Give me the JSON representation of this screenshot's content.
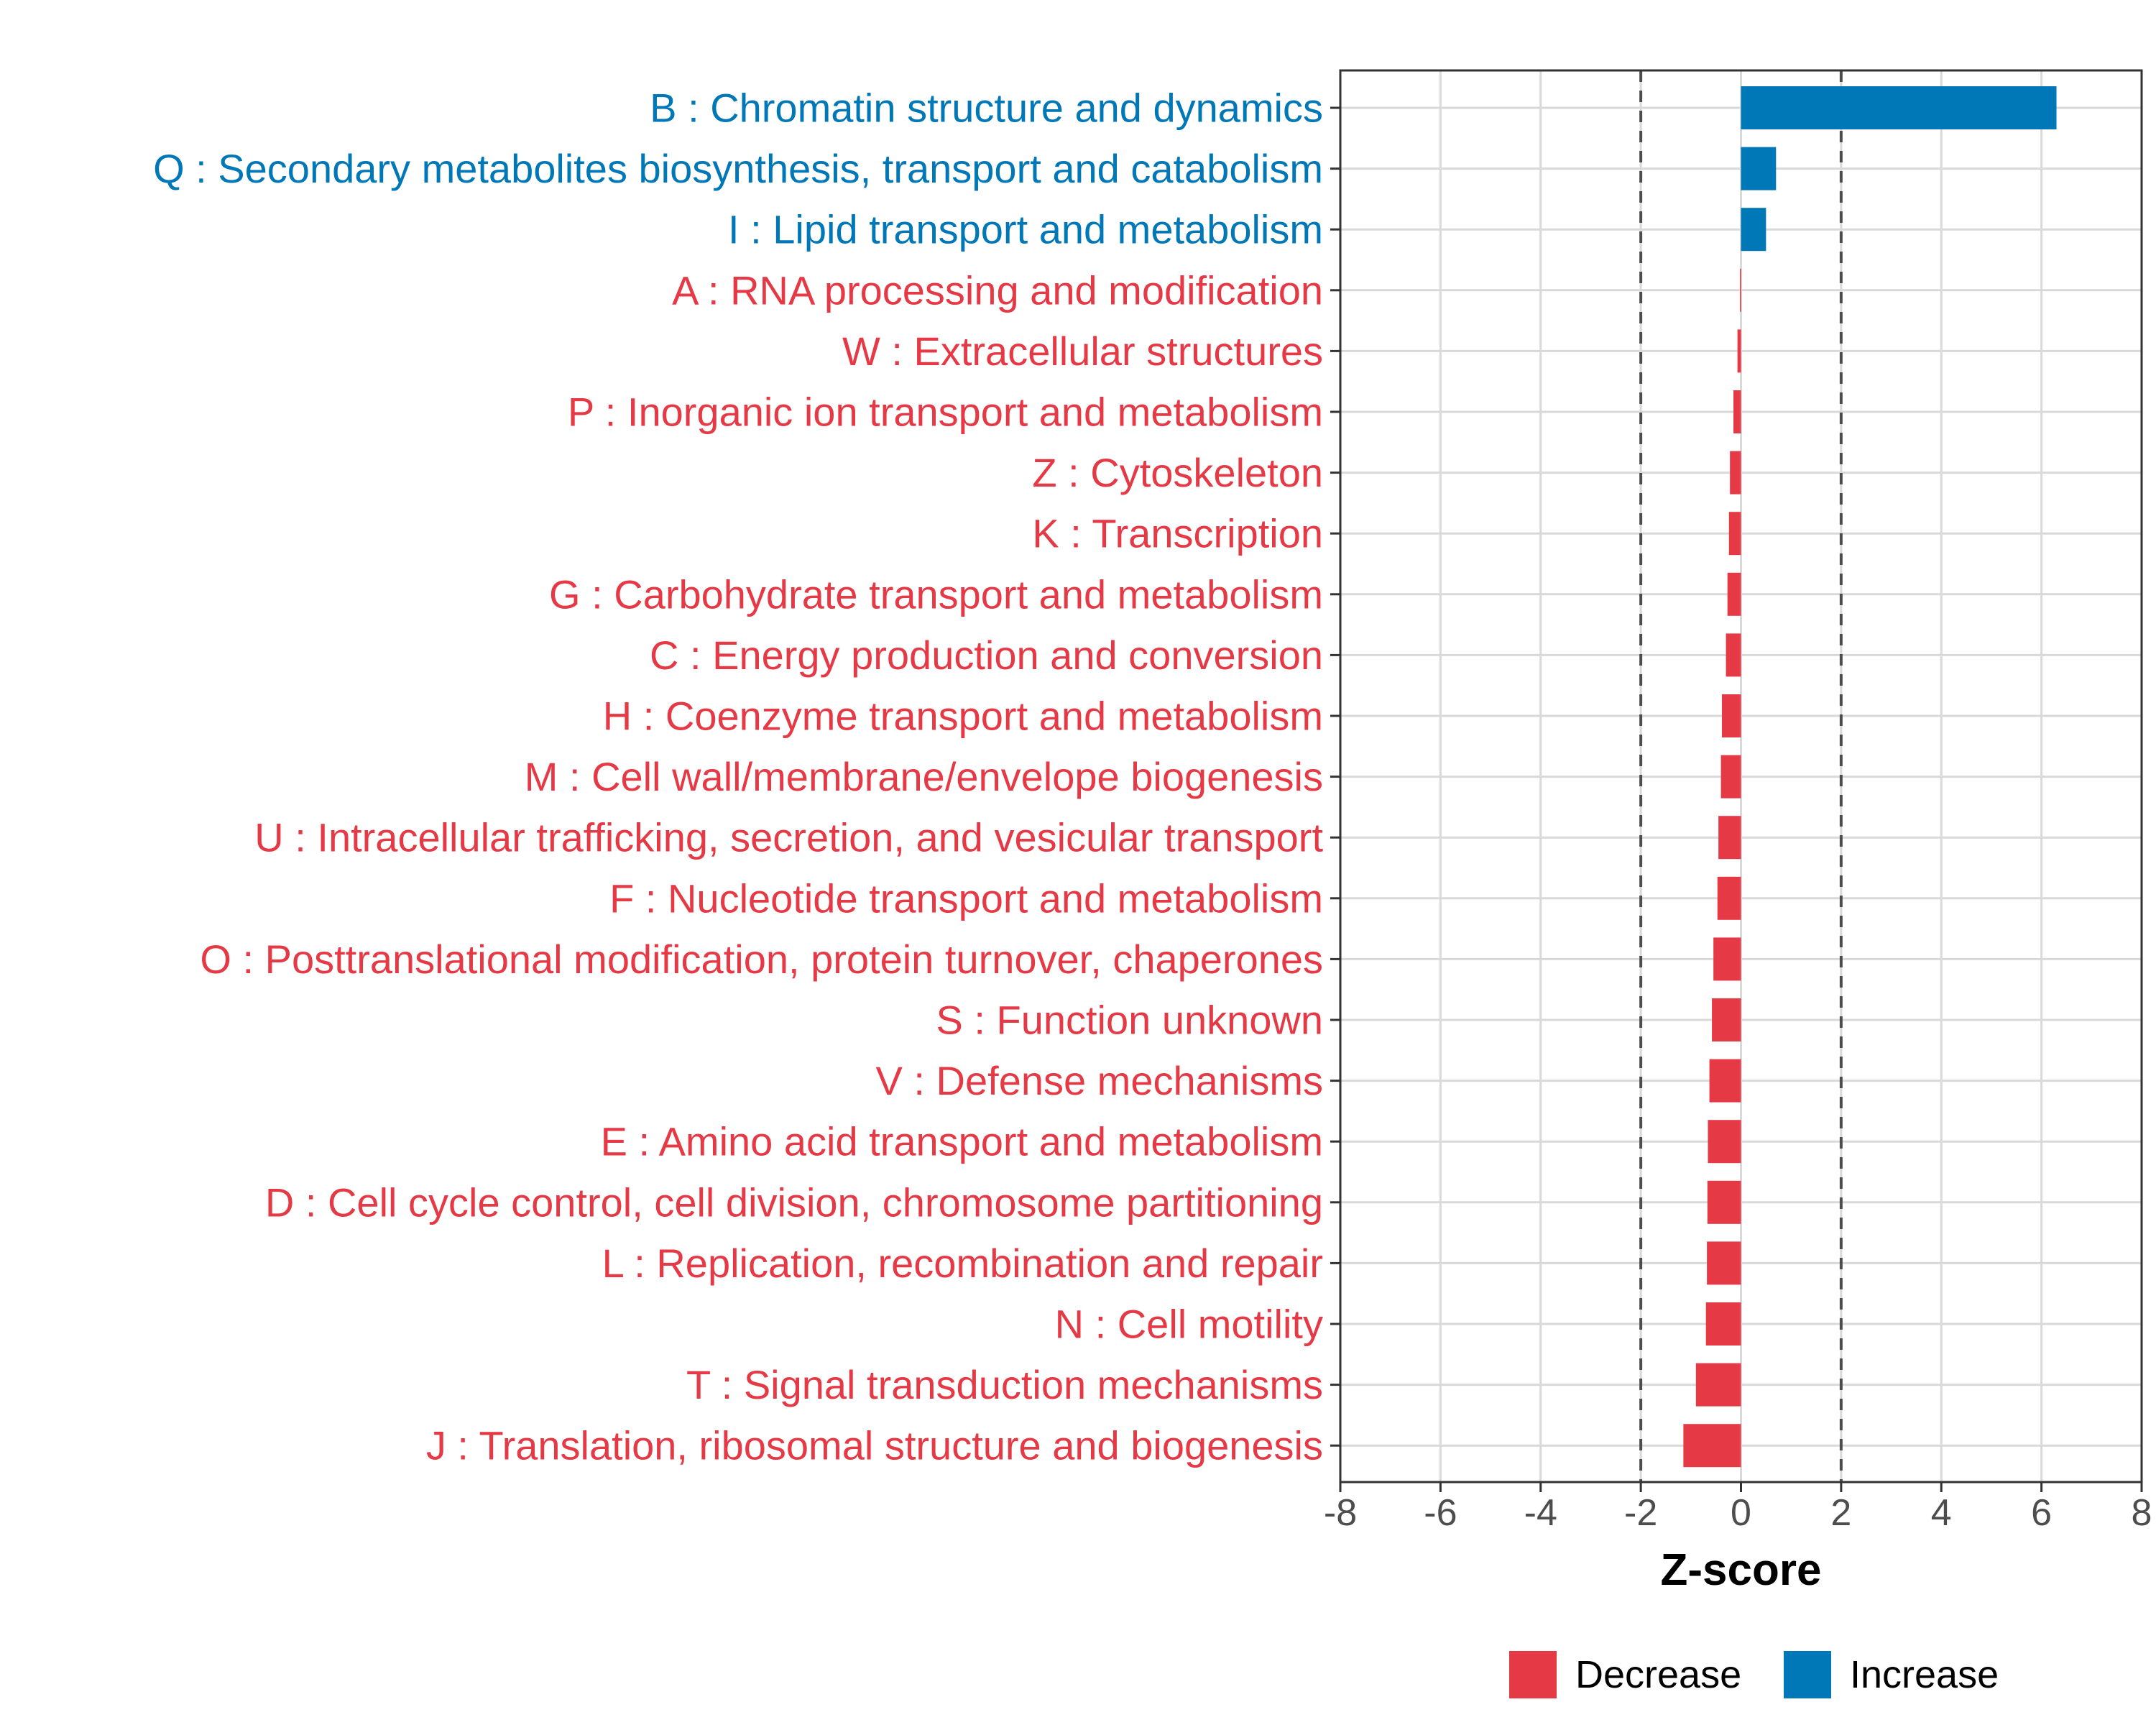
{
  "chart_data": {
    "type": "bar",
    "orientation": "horizontal",
    "title": "",
    "xlabel": "Z-score",
    "ylabel": "",
    "xlim": [
      -8,
      8
    ],
    "x_ticks": [
      -8,
      -6,
      -4,
      -2,
      0,
      2,
      4,
      6,
      8
    ],
    "x_tick_labels": [
      "-8",
      "-6",
      "-4",
      "-2",
      "0",
      "2",
      "4",
      "6",
      "8"
    ],
    "reference_lines": [
      -2,
      2
    ],
    "grid": true,
    "legend_position": "bottom",
    "colors": {
      "Decrease": "#e63946",
      "Increase": "#0077b6"
    },
    "legend": [
      {
        "label": "Decrease",
        "color": "#e63946"
      },
      {
        "label": "Increase",
        "color": "#0077b6"
      }
    ],
    "categories": [
      "B : Chromatin structure and dynamics",
      "Q : Secondary metabolites biosynthesis, transport and catabolism",
      "I : Lipid transport and metabolism",
      "A : RNA processing and modification",
      "W : Extracellular structures",
      "P : Inorganic ion transport and metabolism",
      "Z : Cytoskeleton",
      "K : Transcription",
      "G : Carbohydrate transport and metabolism",
      "C : Energy production and conversion",
      "H : Coenzyme transport and metabolism",
      "M : Cell wall/membrane/envelope biogenesis",
      "U : Intracellular trafficking, secretion, and vesicular transport",
      "F : Nucleotide transport and metabolism",
      "O : Posttranslational modification, protein turnover, chaperones",
      "S : Function unknown",
      "V : Defense mechanisms",
      "E : Amino acid transport and metabolism",
      "D : Cell cycle control, cell division, chromosome partitioning",
      "L : Replication, recombination and repair",
      "N : Cell motility",
      "T : Signal transduction mechanisms",
      "J : Translation, ribosomal structure and biogenesis"
    ],
    "values": [
      6.3,
      0.7,
      0.5,
      -0.02,
      -0.07,
      -0.15,
      -0.22,
      -0.24,
      -0.27,
      -0.3,
      -0.38,
      -0.4,
      -0.45,
      -0.47,
      -0.55,
      -0.58,
      -0.63,
      -0.66,
      -0.67,
      -0.68,
      -0.7,
      -0.9,
      -1.15
    ],
    "groups": [
      "Increase",
      "Increase",
      "Increase",
      "Decrease",
      "Decrease",
      "Decrease",
      "Decrease",
      "Decrease",
      "Decrease",
      "Decrease",
      "Decrease",
      "Decrease",
      "Decrease",
      "Decrease",
      "Decrease",
      "Decrease",
      "Decrease",
      "Decrease",
      "Decrease",
      "Decrease",
      "Decrease",
      "Decrease",
      "Decrease"
    ]
  }
}
